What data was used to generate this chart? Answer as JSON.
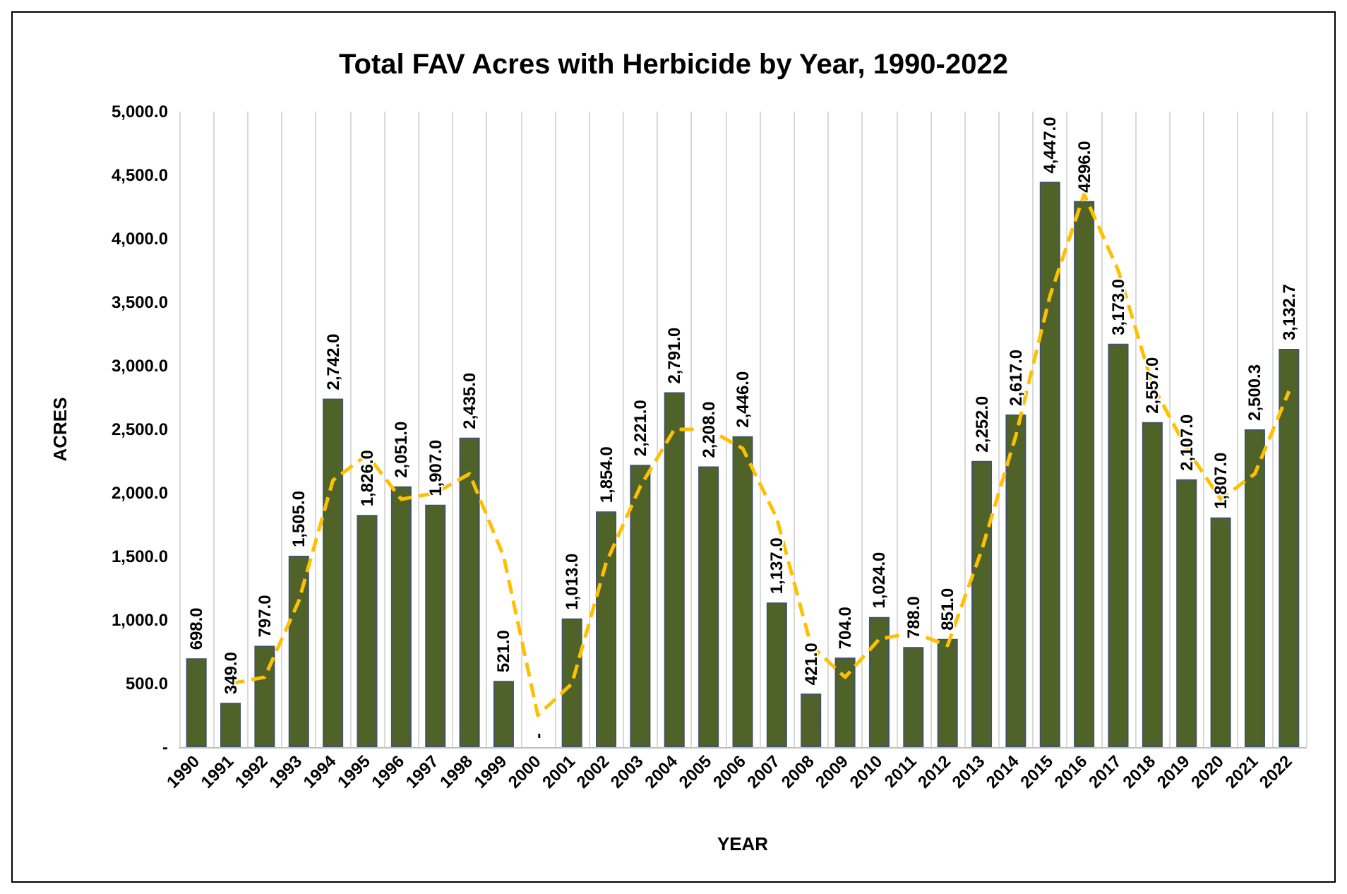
{
  "chart_data": {
    "type": "bar",
    "title": "Total FAV Acres with Herbicide by Year, 1990-2022",
    "xlabel": "YEAR",
    "ylabel": "ACRES",
    "categories": [
      "1990",
      "1991",
      "1992",
      "1993",
      "1994",
      "1995",
      "1996",
      "1997",
      "1998",
      "1999",
      "2000",
      "2001",
      "2002",
      "2003",
      "2004",
      "2005",
      "2006",
      "2007",
      "2008",
      "2009",
      "2010",
      "2011",
      "2012",
      "2013",
      "2014",
      "2015",
      "2016",
      "2017",
      "2018",
      "2019",
      "2020",
      "2021",
      "2022"
    ],
    "series": [
      {
        "color": "#4f6228",
        "values": [
          698,
          349,
          797,
          1505,
          2742,
          1826,
          2051,
          1907,
          2435,
          521,
          0,
          1013,
          1854,
          2221,
          2791,
          2208,
          2446,
          1137,
          421,
          704,
          1024,
          788,
          851,
          2252,
          2617,
          4447,
          4296,
          3173,
          2557,
          2107,
          1807,
          2500.3,
          3132.7
        ],
        "value_labels": [
          "698.0",
          "349.0",
          "797.0",
          "1,505.0",
          "2,742.0",
          "1,826.0",
          "2,051.0",
          "1,907.0",
          "2,435.0",
          "521.0",
          "-",
          "1,013.0",
          "1,854.0",
          "2,221.0",
          "2,791.0",
          "2,208.0",
          "2,446.0",
          "1,137.0",
          "421.0",
          "704.0",
          "1,024.0",
          "788.0",
          "851.0",
          "2,252.0",
          "2,617.0",
          "4,447.0",
          "4296.0",
          "3,173.0",
          "2,557.0",
          "2,107.0",
          "1,807.0",
          "2,500.3",
          "3,132.7"
        ]
      },
      {
        "type": "line",
        "color": "#ffc000",
        "line_style": "dashed",
        "marker": "none",
        "values": [
          null,
          500,
          550,
          1150,
          2100,
          2300,
          1950,
          2000,
          2150,
          1500,
          250,
          500,
          1450,
          2050,
          2500,
          2500,
          2350,
          1800,
          800,
          550,
          850,
          900,
          800,
          1550,
          2450,
          3550,
          4350,
          3750,
          2850,
          2350,
          1950,
          2150,
          2800
        ]
      }
    ],
    "ylim": [
      0,
      5000
    ],
    "yticks": [
      {
        "value": 0,
        "label": "-"
      },
      {
        "value": 500,
        "label": "500.0"
      },
      {
        "value": 1000,
        "label": "1,000.0"
      },
      {
        "value": 1500,
        "label": "1,500.0"
      },
      {
        "value": 2000,
        "label": "2,000.0"
      },
      {
        "value": 2500,
        "label": "2,500.0"
      },
      {
        "value": 3000,
        "label": "3,000.0"
      },
      {
        "value": 3500,
        "label": "3,500.0"
      },
      {
        "value": 4000,
        "label": "4,000.0"
      },
      {
        "value": 4500,
        "label": "4,500.0"
      },
      {
        "value": 5000,
        "label": "5,000.0"
      }
    ],
    "grid": "x"
  }
}
